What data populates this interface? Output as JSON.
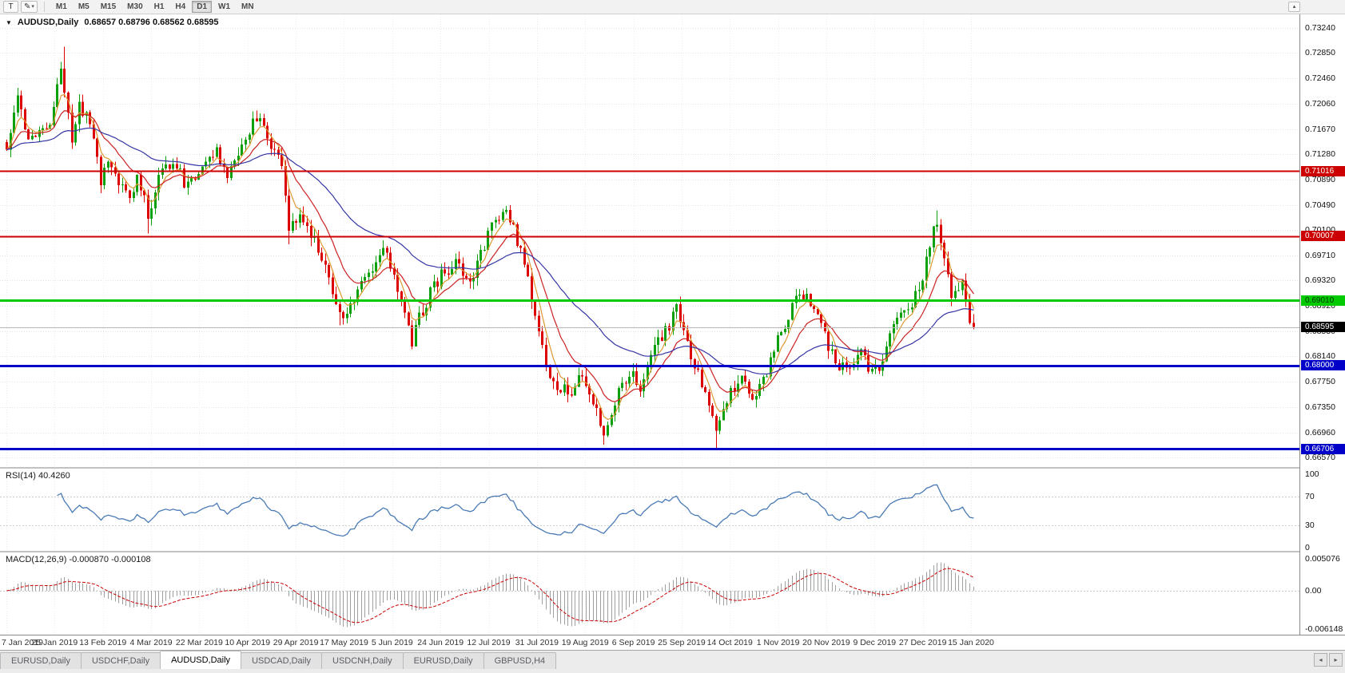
{
  "toolbar": {
    "text_tool": "T",
    "draw_tool": "✎",
    "dropdown_arrow": "▾",
    "scroll_up": "▴",
    "timeframes": [
      {
        "label": "M1",
        "active": false
      },
      {
        "label": "M5",
        "active": false
      },
      {
        "label": "M15",
        "active": false
      },
      {
        "label": "M30",
        "active": false
      },
      {
        "label": "H1",
        "active": false
      },
      {
        "label": "H4",
        "active": false
      },
      {
        "label": "D1",
        "active": true
      },
      {
        "label": "W1",
        "active": false
      },
      {
        "label": "MN",
        "active": false
      }
    ]
  },
  "main_chart": {
    "collapse_arrow": "▼",
    "symbol": "AUDUSD,Daily",
    "ohlc": "0.68657 0.68796 0.68562 0.68595",
    "price_labels": [
      "0.73240",
      "0.72850",
      "0.72460",
      "0.72060",
      "0.71670",
      "0.71280",
      "0.70890",
      "0.70490",
      "0.70100",
      "0.69710",
      "0.69320",
      "0.68920",
      "0.68530",
      "0.68140",
      "0.67750",
      "0.67350",
      "0.66960",
      "0.66570"
    ],
    "hlines": [
      {
        "label": "0.71016",
        "value": 0.71016,
        "color": "#cc0000",
        "text_color": "#ffffff",
        "width": 2
      },
      {
        "label": "0.70007",
        "value": 0.70007,
        "color": "#cc0000",
        "text_color": "#ffffff",
        "width": 2
      },
      {
        "label": "0.69010",
        "value": 0.6901,
        "color": "#00ca00",
        "text_color": "#003300",
        "width": 3
      },
      {
        "label": "0.68000",
        "value": 0.68,
        "color": "#0000c8",
        "text_color": "#ffffff",
        "width": 3
      },
      {
        "label": "0.66706",
        "value": 0.66706,
        "color": "#0000c8",
        "text_color": "#ffffff",
        "width": 3
      }
    ],
    "current_price": {
      "label": "0.68595",
      "value": 0.68595,
      "bg": "#000000",
      "text_color": "#ffffff"
    }
  },
  "rsi_panel": {
    "label": "RSI(14) 40.4260",
    "axis_labels": [
      "100",
      "70",
      "30",
      "0"
    ],
    "levels": [
      70,
      30
    ],
    "period": 14,
    "current_value": 40.426,
    "line_color": "#4a7ab5"
  },
  "macd_panel": {
    "label": "MACD(12,26,9) -0.000870 -0.000108",
    "axis_labels": [
      "0.005076",
      "0.00",
      "-0.006148"
    ],
    "axis_max": 0.005076,
    "axis_min": -0.006148,
    "values": {
      "macd": -0.00087,
      "signal": -0.000108
    },
    "histogram_color": "#a0a0a0",
    "signal_color": "#cc0000"
  },
  "date_axis": [
    "7 Jan 2019",
    "25 Jan 2019",
    "13 Feb 2019",
    "4 Mar 2019",
    "22 Mar 2019",
    "10 Apr 2019",
    "29 Apr 2019",
    "17 May 2019",
    "5 Jun 2019",
    "24 Jun 2019",
    "12 Jul 2019",
    "31 Jul 2019",
    "19 Aug 2019",
    "6 Sep 2019",
    "25 Sep 2019",
    "14 Oct 2019",
    "1 Nov 2019",
    "20 Nov 2019",
    "9 Dec 2019",
    "27 Dec 2019",
    "15 Jan 2020"
  ],
  "tabs": {
    "items": [
      {
        "label": "EURUSD,Daily",
        "active": false
      },
      {
        "label": "USDCHF,Daily",
        "active": false
      },
      {
        "label": "AUDUSD,Daily",
        "active": true
      },
      {
        "label": "USDCAD,Daily",
        "active": false
      },
      {
        "label": "USDCNH,Daily",
        "active": false
      },
      {
        "label": "EURUSD,Daily",
        "active": false
      },
      {
        "label": "GBPUSD,H4",
        "active": false
      }
    ],
    "nav_left": "◂",
    "nav_right": "▸"
  },
  "chart_data": {
    "type": "candlestick",
    "symbol": "AUDUSD",
    "timeframe": "Daily",
    "bars": 268,
    "price_axis_range": [
      0.6657,
      0.7324
    ],
    "up_color": "#0ca00c",
    "down_color": "#dd0000",
    "hline_values": [
      0.71016,
      0.70007,
      0.6901,
      0.68,
      0.66706
    ],
    "ma_lines": [
      {
        "name": "ma-fast",
        "color": "#dd9933",
        "period": 5
      },
      {
        "name": "ma-medium",
        "color": "#cc2222",
        "period": 13
      },
      {
        "name": "ma-slow",
        "color": "#3535a5",
        "period": 45
      }
    ],
    "indicators": [
      {
        "name": "RSI",
        "params": [
          14
        ],
        "last": 40.426
      },
      {
        "name": "MACD",
        "params": [
          12,
          26,
          9
        ],
        "last_main": -0.00087,
        "last_signal": -0.000108
      }
    ],
    "close_anchors": [
      [
        0,
        0.7135
      ],
      [
        3,
        0.7225
      ],
      [
        5,
        0.716
      ],
      [
        8,
        0.715
      ],
      [
        12,
        0.718
      ],
      [
        14,
        0.723
      ],
      [
        15,
        0.726
      ],
      [
        16,
        0.7215
      ],
      [
        17,
        0.7185
      ],
      [
        18,
        0.715
      ],
      [
        20,
        0.7205
      ],
      [
        23,
        0.718
      ],
      [
        26,
        0.709
      ],
      [
        29,
        0.7115
      ],
      [
        34,
        0.705
      ],
      [
        36,
        0.7095
      ],
      [
        39,
        0.7035
      ],
      [
        42,
        0.709
      ],
      [
        46,
        0.712
      ],
      [
        50,
        0.7075
      ],
      [
        54,
        0.711
      ],
      [
        58,
        0.713
      ],
      [
        61,
        0.71
      ],
      [
        65,
        0.714
      ],
      [
        69,
        0.719
      ],
      [
        72,
        0.715
      ],
      [
        76,
        0.7105
      ],
      [
        78,
        0.701
      ],
      [
        81,
        0.7025
      ],
      [
        85,
        0.699
      ],
      [
        89,
        0.694
      ],
      [
        92,
        0.6875
      ],
      [
        96,
        0.6905
      ],
      [
        99,
        0.693
      ],
      [
        102,
        0.696
      ],
      [
        104,
        0.6975
      ],
      [
        107,
        0.695
      ],
      [
        110,
        0.6875
      ],
      [
        112,
        0.684
      ],
      [
        114,
        0.6875
      ],
      [
        118,
        0.6925
      ],
      [
        121,
        0.6945
      ],
      [
        124,
        0.696
      ],
      [
        128,
        0.6925
      ],
      [
        131,
        0.6975
      ],
      [
        134,
        0.702
      ],
      [
        138,
        0.704
      ],
      [
        140,
        0.701
      ],
      [
        143,
        0.6955
      ],
      [
        146,
        0.6875
      ],
      [
        149,
        0.68
      ],
      [
        152,
        0.677
      ],
      [
        155,
        0.6755
      ],
      [
        159,
        0.6785
      ],
      [
        162,
        0.674
      ],
      [
        165,
        0.669
      ],
      [
        169,
        0.6755
      ],
      [
        172,
        0.679
      ],
      [
        175,
        0.677
      ],
      [
        179,
        0.6825
      ],
      [
        182,
        0.6855
      ],
      [
        185,
        0.6885
      ],
      [
        188,
        0.683
      ],
      [
        192,
        0.677
      ],
      [
        194,
        0.673
      ],
      [
        196,
        0.67
      ],
      [
        200,
        0.676
      ],
      [
        203,
        0.678
      ],
      [
        206,
        0.6745
      ],
      [
        210,
        0.679
      ],
      [
        213,
        0.684
      ],
      [
        216,
        0.688
      ],
      [
        219,
        0.692
      ],
      [
        223,
        0.689
      ],
      [
        226,
        0.6845
      ],
      [
        229,
        0.68
      ],
      [
        233,
        0.679
      ],
      [
        236,
        0.6815
      ],
      [
        239,
        0.6785
      ],
      [
        242,
        0.6805
      ],
      [
        244,
        0.685
      ],
      [
        247,
        0.688
      ],
      [
        250,
        0.69
      ],
      [
        253,
        0.693
      ],
      [
        255,
        0.699
      ],
      [
        257,
        0.7025
      ],
      [
        259,
        0.696
      ],
      [
        261,
        0.6905
      ],
      [
        264,
        0.693
      ],
      [
        266,
        0.68657
      ],
      [
        267,
        0.68595
      ]
    ],
    "spikes": [
      {
        "i": 16,
        "h": 0.7295
      },
      {
        "i": 39,
        "l": 0.7005
      },
      {
        "i": 78,
        "l": 0.6988
      },
      {
        "i": 92,
        "l": 0.6862
      },
      {
        "i": 112,
        "l": 0.6832
      },
      {
        "i": 165,
        "l": 0.6677
      },
      {
        "i": 196,
        "l": 0.6671
      },
      {
        "i": 257,
        "h": 0.7041
      }
    ],
    "last_bar": {
      "open": 0.68657,
      "high": 0.68796,
      "low": 0.68562,
      "close": 0.68595
    }
  }
}
